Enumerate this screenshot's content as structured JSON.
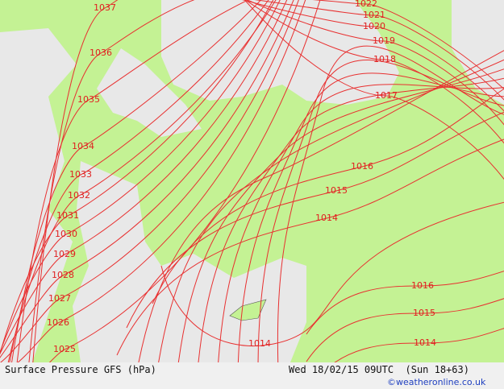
{
  "isobar_labels": [
    "1037",
    "1036",
    "1035",
    "1034",
    "1033",
    "1032",
    "1031",
    "1030",
    "1029",
    "1028",
    "1027",
    "1026",
    "1025",
    "1022",
    "1021",
    "1020",
    "1019",
    "1018",
    "1017",
    "1016",
    "1015",
    "1014",
    "1014",
    "1016",
    "1015",
    "1014"
  ],
  "footer": {
    "title": "Surface Pressure GFS (hPa)",
    "timestamp": "Wed 18/02/15 09UTC  (Sun 18+63)",
    "credit": "©weatheronline.co.uk"
  }
}
